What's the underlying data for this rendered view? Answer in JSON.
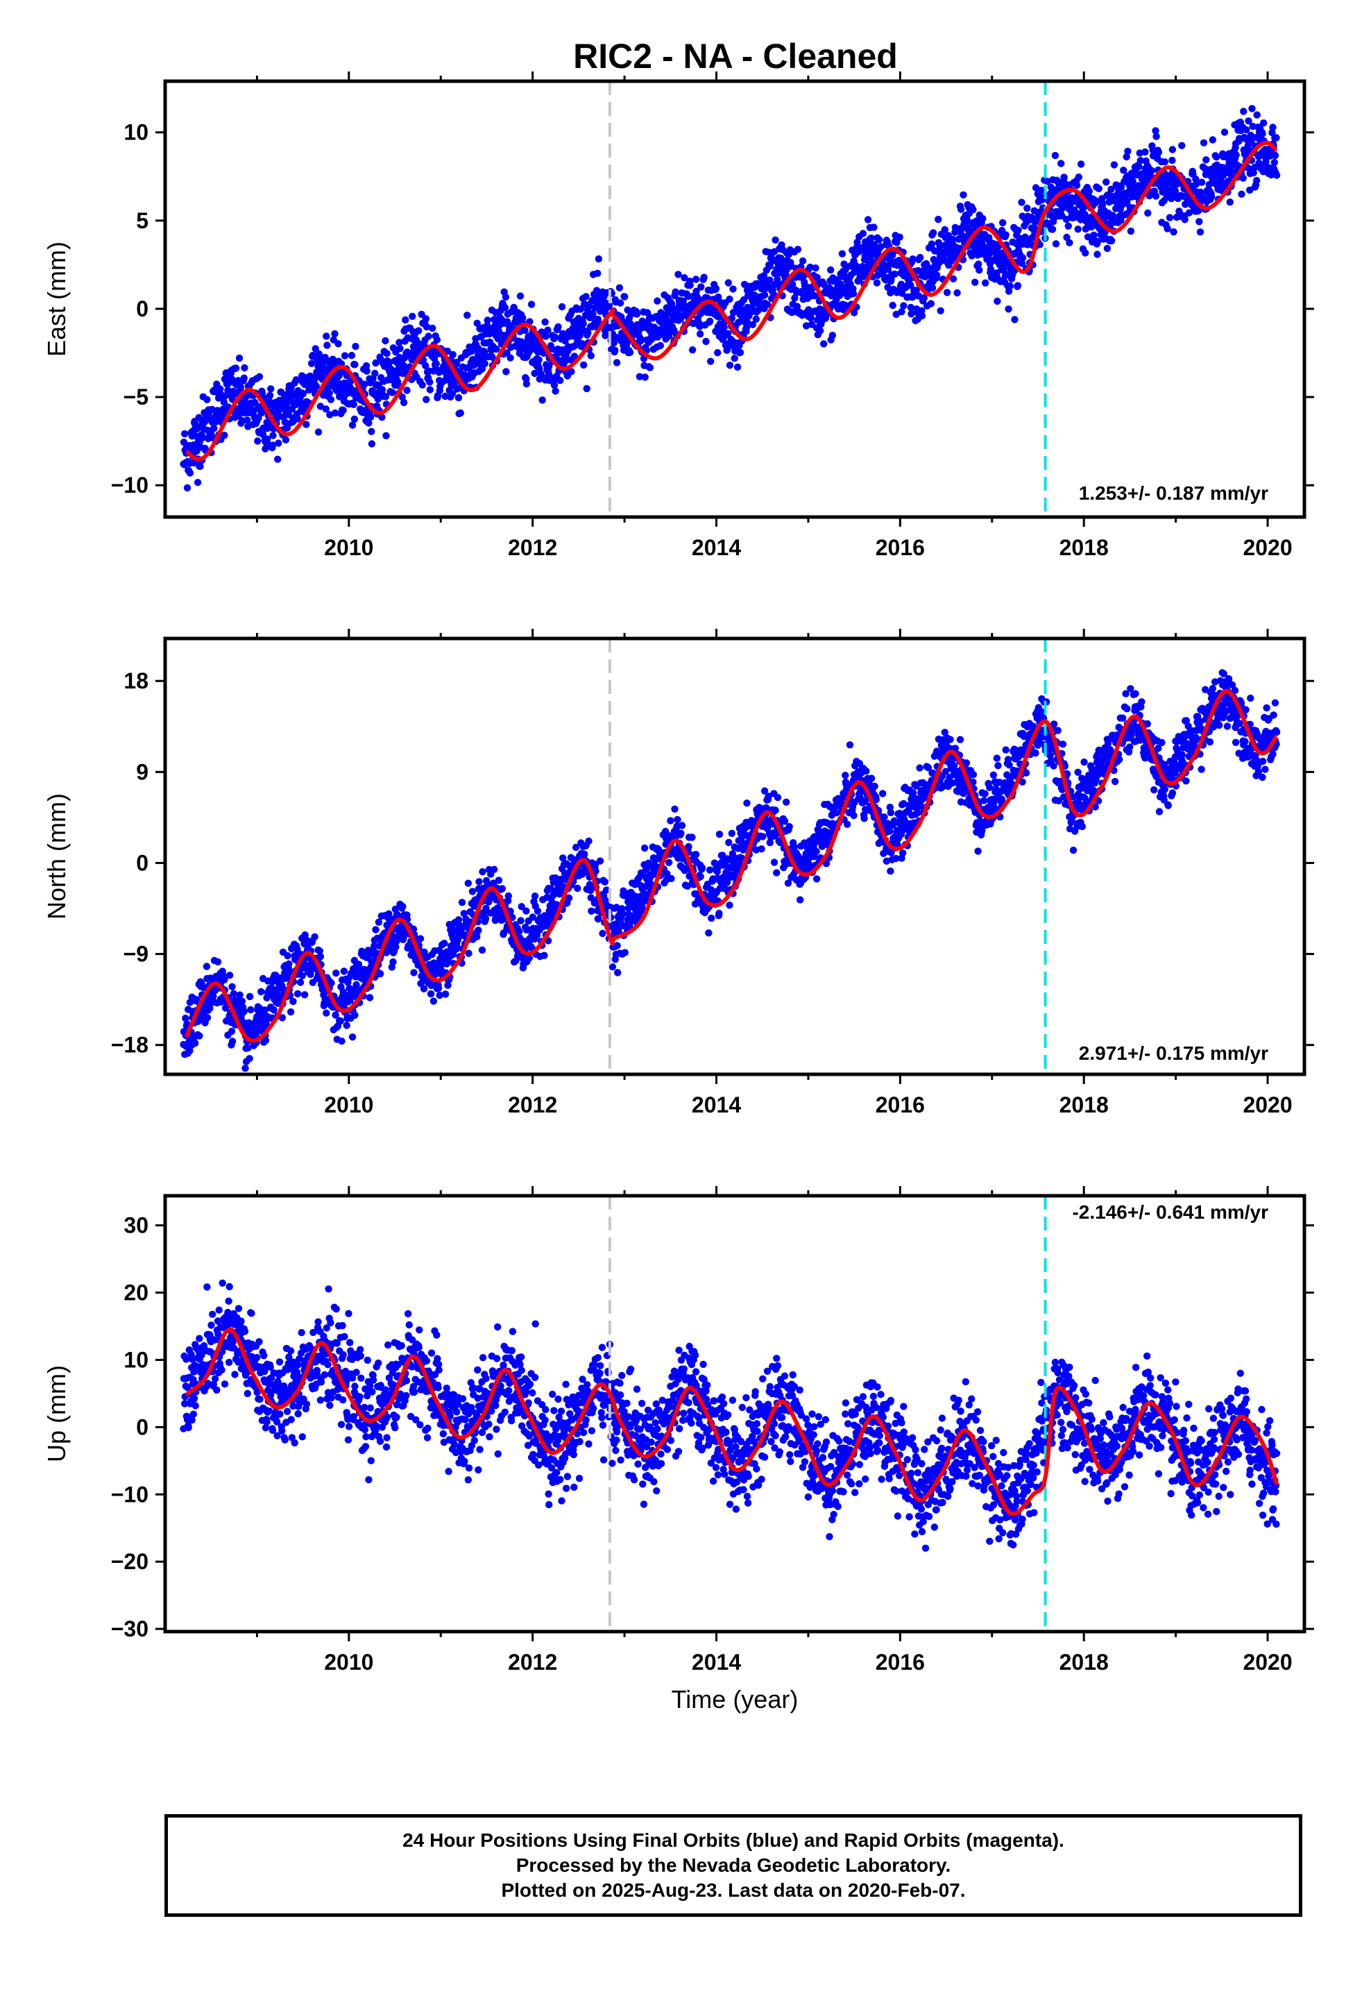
{
  "colors": {
    "points": "#0000ff",
    "fit": "#ff0000",
    "break_gray": "#c8c8c8",
    "break_cyan": "#00e5e5"
  },
  "chart_data": [
    {
      "type": "scatter",
      "title": "RIC2  - NA - Cleaned",
      "ylabel": "East (mm)",
      "xlabel": "",
      "xlim": [
        2008.0,
        2020.4
      ],
      "ylim": [
        -11.8,
        12.9
      ],
      "xticks": [
        2010,
        2012,
        2014,
        2016,
        2018,
        2020
      ],
      "yticks": [
        -10,
        -5,
        0,
        5,
        10
      ],
      "ytick_labels": [
        "−10",
        "−5",
        "0",
        "5",
        "10"
      ],
      "rate_label": "1.253+/- 0.187 mm/yr",
      "breaks": [
        {
          "x": 2012.84,
          "color": "gray"
        },
        {
          "x": 2017.58,
          "color": "cyan"
        }
      ],
      "series": [
        {
          "kind": "points",
          "x": [
            2008.2,
            2008.7,
            2009.2,
            2009.7,
            2010.2,
            2010.7,
            2011.2,
            2011.7,
            2012.2,
            2012.7,
            2013.2,
            2013.7,
            2014.2,
            2014.7,
            2015.2,
            2015.7,
            2016.2,
            2016.7,
            2017.2,
            2017.7,
            2018.2,
            2018.7,
            2019.2,
            2019.7,
            2020.1
          ],
          "y": [
            -8.5,
            -4.8,
            -6.5,
            -3.5,
            -5.2,
            -2.2,
            -4.0,
            -1.0,
            -2.8,
            -0.1,
            -2.0,
            0.5,
            -1.0,
            2.0,
            0.0,
            3.2,
            1.2,
            4.4,
            2.6,
            6.5,
            4.8,
            7.8,
            6.0,
            8.8,
            9.0
          ]
        },
        {
          "kind": "fit",
          "x": [
            2008.23,
            2008.45,
            2008.9,
            2009.35,
            2009.9,
            2010.35,
            2010.9,
            2011.35,
            2011.9,
            2012.35,
            2012.84,
            2012.9,
            2013.35,
            2013.9,
            2014.35,
            2014.9,
            2015.35,
            2015.9,
            2016.35,
            2016.9,
            2017.35,
            2017.58,
            2017.9,
            2018.35,
            2018.9,
            2019.35,
            2019.9,
            2020.1
          ],
          "y": [
            -8.1,
            -8.3,
            -4.6,
            -7.1,
            -3.3,
            -5.9,
            -2.1,
            -4.6,
            -0.9,
            -3.4,
            -0.3,
            -0.5,
            -2.8,
            0.4,
            -1.7,
            2.2,
            -0.5,
            3.4,
            0.8,
            4.6,
            2.1,
            5.5,
            6.7,
            4.4,
            8.0,
            5.7,
            9.2,
            9.0
          ]
        }
      ]
    },
    {
      "type": "scatter",
      "title": "",
      "ylabel": "North (mm)",
      "xlabel": "",
      "xlim": [
        2008.0,
        2020.4
      ],
      "ylim": [
        -20.9,
        22.2
      ],
      "xticks": [
        2010,
        2012,
        2014,
        2016,
        2018,
        2020
      ],
      "yticks": [
        -18,
        -9,
        0,
        9,
        18
      ],
      "ytick_labels": [
        "−18",
        "−9",
        "0",
        "9",
        "18"
      ],
      "rate_label": "2.971+/- 0.175 mm/yr",
      "breaks": [
        {
          "x": 2012.84,
          "color": "gray"
        },
        {
          "x": 2017.58,
          "color": "cyan"
        }
      ],
      "series": [
        {
          "kind": "points",
          "x": [
            2008.2,
            2008.55,
            2008.9,
            2009.55,
            2009.9,
            2010.55,
            2010.9,
            2011.55,
            2011.9,
            2012.55,
            2012.9,
            2013.55,
            2013.9,
            2014.55,
            2014.9,
            2015.55,
            2015.9,
            2016.55,
            2016.9,
            2017.55,
            2017.9,
            2018.55,
            2018.9,
            2019.55,
            2019.9,
            2020.1
          ],
          "y": [
            -17.5,
            -11.5,
            -17.5,
            -9.0,
            -14.5,
            -5.5,
            -11.5,
            -2.5,
            -8.5,
            0.5,
            -7.0,
            2.5,
            -4.0,
            5.0,
            -1.0,
            8.0,
            2.0,
            11.0,
            4.5,
            14.0,
            5.0,
            14.5,
            8.0,
            17.0,
            11.0,
            12.5
          ]
        },
        {
          "kind": "fit",
          "x": [
            2008.23,
            2008.55,
            2008.9,
            2009.2,
            2009.55,
            2009.9,
            2010.2,
            2010.55,
            2010.9,
            2011.2,
            2011.55,
            2011.9,
            2012.2,
            2012.55,
            2012.84,
            2012.9,
            2013.2,
            2013.55,
            2013.9,
            2014.2,
            2014.55,
            2014.9,
            2015.2,
            2015.55,
            2015.9,
            2016.2,
            2016.55,
            2016.9,
            2017.2,
            2017.58,
            2017.9,
            2018.2,
            2018.55,
            2018.9,
            2019.2,
            2019.55,
            2019.9,
            2020.1
          ],
          "y": [
            -17.2,
            -11.9,
            -17.4,
            -15.5,
            -8.9,
            -14.5,
            -12.2,
            -5.6,
            -11.4,
            -9.6,
            -2.5,
            -8.8,
            -6.5,
            0.3,
            -7.3,
            -7.4,
            -5.5,
            2.2,
            -3.9,
            -2.4,
            5.0,
            -0.9,
            0.8,
            8.0,
            1.6,
            3.7,
            11.0,
            4.8,
            6.5,
            14.0,
            5.0,
            7.6,
            14.5,
            8.0,
            10.5,
            17.0,
            11.0,
            12.5
          ]
        }
      ]
    },
    {
      "type": "scatter",
      "title": "",
      "ylabel": "Up (mm)",
      "xlabel": "Time (year)",
      "xlim": [
        2008.0,
        2020.4
      ],
      "ylim": [
        -30.4,
        34.4
      ],
      "xticks": [
        2010,
        2012,
        2014,
        2016,
        2018,
        2020
      ],
      "yticks": [
        -30,
        -20,
        -10,
        0,
        10,
        20,
        30
      ],
      "ytick_labels": [
        "−30",
        "−20",
        "−10",
        "0",
        "10",
        "20",
        "30"
      ],
      "rate_label": "-2.146+/- 0.641 mm/yr",
      "breaks": [
        {
          "x": 2012.84,
          "color": "gray"
        },
        {
          "x": 2017.58,
          "color": "cyan"
        }
      ],
      "series": [
        {
          "kind": "points",
          "x": [
            2008.2,
            2008.7,
            2009.25,
            2009.7,
            2010.25,
            2010.7,
            2011.25,
            2011.7,
            2012.25,
            2012.7,
            2013.25,
            2013.7,
            2014.25,
            2014.7,
            2015.25,
            2015.7,
            2016.25,
            2016.7,
            2017.25,
            2017.7,
            2018.25,
            2018.7,
            2019.25,
            2019.7,
            2020.1
          ],
          "y": [
            5.0,
            14.0,
            3.0,
            12.0,
            1.0,
            10.0,
            -2.0,
            8.0,
            -4.0,
            6.0,
            -4.0,
            6.0,
            -6.0,
            4.0,
            -8.0,
            2.0,
            -10.0,
            -1.0,
            -13.0,
            5.5,
            -6.0,
            3.5,
            -8.5,
            1.0,
            -8.5
          ]
        },
        {
          "kind": "fit",
          "x": [
            2008.23,
            2008.45,
            2008.7,
            2008.95,
            2009.2,
            2009.45,
            2009.7,
            2009.95,
            2010.2,
            2010.45,
            2010.7,
            2010.95,
            2011.2,
            2011.45,
            2011.7,
            2011.95,
            2012.2,
            2012.45,
            2012.7,
            2012.84,
            2012.95,
            2013.2,
            2013.45,
            2013.7,
            2013.95,
            2014.2,
            2014.45,
            2014.7,
            2014.95,
            2015.2,
            2015.45,
            2015.7,
            2015.95,
            2016.2,
            2016.45,
            2016.7,
            2016.95,
            2017.2,
            2017.45,
            2017.58,
            2017.7,
            2017.95,
            2018.2,
            2018.45,
            2018.7,
            2018.95,
            2019.2,
            2019.45,
            2019.7,
            2019.95,
            2020.1
          ],
          "y": [
            4.8,
            7.5,
            14.5,
            8.0,
            3.0,
            5.5,
            12.5,
            6.0,
            1.0,
            3.5,
            10.5,
            4.0,
            -1.5,
            1.5,
            8.5,
            2.0,
            -3.8,
            -0.5,
            6.0,
            5.0,
            1.0,
            -4.3,
            -1.5,
            5.8,
            0.5,
            -6.3,
            -3.0,
            3.8,
            -1.5,
            -8.5,
            -5.0,
            1.6,
            -3.8,
            -10.8,
            -7.0,
            -0.5,
            -6.0,
            -12.8,
            -10.0,
            -7.5,
            5.5,
            1.5,
            -6.5,
            -3.0,
            3.5,
            -0.5,
            -8.5,
            -5.0,
            1.5,
            -2.5,
            -8.5
          ]
        }
      ]
    }
  ],
  "footer": {
    "line1": "24 Hour Positions Using Final Orbits (blue) and Rapid Orbits (magenta).",
    "line2": "Processed by the Nevada Geodetic Laboratory.",
    "line3": "Plotted on 2025-Aug-23. Last data on 2020-Feb-07."
  }
}
